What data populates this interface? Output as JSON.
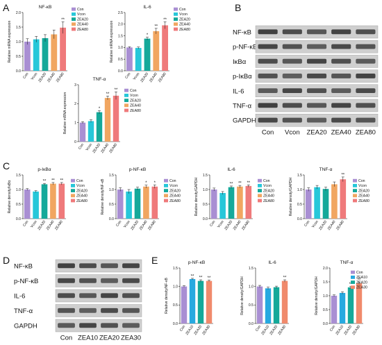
{
  "panel_letters": [
    "A",
    "B",
    "C",
    "D",
    "E"
  ],
  "colors": {
    "Con": "#a98fd3",
    "Vcon": "#27c7d9",
    "ZEA20": "#15a99a",
    "ZEA40": "#f1a661",
    "ZEA80": "#ef7a7b",
    "ZEA10": "#27a9e0",
    "ZEA30": "#f08a6c"
  },
  "blot_b": {
    "rows": [
      "NF-κB",
      "p-NF-κB",
      "IκBα",
      "p-IκBα",
      "IL-6",
      "TNF-α",
      "GAPDH"
    ],
    "lanes": [
      "Con",
      "Vcon",
      "ZEA20",
      "ZEA40",
      "ZEA80"
    ]
  },
  "blot_d": {
    "rows": [
      "NF-κB",
      "p-NF-κB",
      "IL-6",
      "TNF-α",
      "GAPDH"
    ],
    "lanes": [
      "Con",
      "ZEA10",
      "ZEA20",
      "ZEA30"
    ]
  },
  "chart_data": [
    {
      "id": "A1",
      "type": "bar",
      "title": "NF-κB",
      "ylabel": "Relative mRNA expression",
      "categories": [
        "Con",
        "Vcon",
        "ZEA20",
        "ZEA40",
        "ZEA80"
      ],
      "values": [
        1.0,
        1.08,
        1.12,
        1.25,
        1.48
      ],
      "errors": [
        0.1,
        0.1,
        0.12,
        0.15,
        0.2
      ],
      "significance": [
        "",
        "",
        "",
        "",
        "**"
      ],
      "ylim": [
        0,
        2.0
      ],
      "yticks": [
        "0.0",
        "0.5",
        "1.0",
        "1.5",
        "2.0"
      ],
      "legend": [
        "Con",
        "Vcon",
        "ZEA20",
        "ZEA40",
        "ZEA80"
      ]
    },
    {
      "id": "A2",
      "type": "bar",
      "title": "IL-6",
      "ylabel": "Relative mRNA expression",
      "categories": [
        "Con",
        "Vcon",
        "ZEA20",
        "ZEA40",
        "ZEA80"
      ],
      "values": [
        1.0,
        0.98,
        1.38,
        1.7,
        1.95
      ],
      "errors": [
        0.03,
        0.04,
        0.06,
        0.12,
        0.15
      ],
      "significance": [
        "",
        "",
        "*",
        "**",
        "**"
      ],
      "ylim": [
        0,
        2.5
      ],
      "yticks": [
        "0.0",
        "0.5",
        "1.0",
        "1.5",
        "2.0",
        "2.5"
      ],
      "legend": [
        "Con",
        "Vcon",
        "ZEA20",
        "ZEA40",
        "ZEA80"
      ]
    },
    {
      "id": "A3",
      "type": "bar",
      "title": "TNF-α",
      "ylabel": "Relative mRNA expression",
      "categories": [
        "Con",
        "Vcon",
        "ZEA20",
        "ZEA40",
        "ZEA80"
      ],
      "values": [
        1.0,
        1.08,
        1.55,
        2.3,
        2.42
      ],
      "errors": [
        0.05,
        0.07,
        0.08,
        0.1,
        0.2
      ],
      "significance": [
        "",
        "",
        "*",
        "**",
        "**"
      ],
      "ylim": [
        0,
        3.0
      ],
      "yticks": [
        "0",
        "1",
        "2",
        "3"
      ],
      "legend": [
        "Con",
        "Vcon",
        "ZEA20",
        "ZEA40",
        "ZEA80"
      ]
    },
    {
      "id": "C1",
      "type": "bar",
      "title": "p-IκBα",
      "ylabel": "Relative density/IκBα",
      "categories": [
        "Con",
        "Vcon",
        "ZEA20",
        "ZEA40",
        "ZEA80"
      ],
      "values": [
        1.0,
        0.93,
        1.18,
        1.2,
        1.2
      ],
      "errors": [
        0.03,
        0.03,
        0.03,
        0.04,
        0.04
      ],
      "significance": [
        "",
        "",
        "**",
        "**",
        "**"
      ],
      "ylim": [
        0,
        1.5
      ],
      "yticks": [
        "0.0",
        "0.5",
        "1.0",
        "1.5"
      ],
      "legend": [
        "Con",
        "Vcon",
        "ZEA20",
        "ZEA40",
        "ZEA80"
      ]
    },
    {
      "id": "C2",
      "type": "bar",
      "title": "p-NF-κB",
      "ylabel": "Relative density/NF-κB",
      "categories": [
        "Con",
        "Vcon",
        "ZEA20",
        "ZEA40",
        "ZEA80"
      ],
      "values": [
        1.0,
        0.93,
        1.03,
        1.1,
        1.1
      ],
      "errors": [
        0.06,
        0.07,
        0.05,
        0.05,
        0.06
      ],
      "significance": [
        "",
        "",
        "",
        "*",
        "*"
      ],
      "ylim": [
        0,
        1.5
      ],
      "yticks": [
        "0.0",
        "0.5",
        "1.0",
        "1.5"
      ],
      "legend": [
        "Con",
        "Vcon",
        "ZEA20",
        "ZEA40",
        "ZEA80"
      ]
    },
    {
      "id": "C3",
      "type": "bar",
      "title": "IL-6",
      "ylabel": "Relative density/GAPDH",
      "categories": [
        "Con",
        "Vcon",
        "ZEA20",
        "ZEA40",
        "ZEA80"
      ],
      "values": [
        1.0,
        0.88,
        1.08,
        1.1,
        1.12
      ],
      "errors": [
        0.05,
        0.05,
        0.04,
        0.04,
        0.04
      ],
      "significance": [
        "",
        "",
        "**",
        "**",
        "**"
      ],
      "ylim": [
        0,
        1.5
      ],
      "yticks": [
        "0.0",
        "0.5",
        "1.0",
        "1.5"
      ],
      "legend": [
        "Con",
        "Vcon",
        "ZEA20",
        "ZEA40",
        "ZEA80"
      ]
    },
    {
      "id": "C4",
      "type": "bar",
      "title": "TNF-α",
      "ylabel": "Relative density/GAPDH",
      "categories": [
        "Con",
        "Vcon",
        "ZEA20",
        "ZEA40",
        "ZEA80"
      ],
      "values": [
        1.0,
        1.08,
        1.02,
        1.18,
        1.35
      ],
      "errors": [
        0.06,
        0.06,
        0.06,
        0.08,
        0.08
      ],
      "significance": [
        "",
        "",
        "",
        "",
        "**"
      ],
      "ylim": [
        0,
        1.5
      ],
      "yticks": [
        "0.0",
        "0.5",
        "1.0",
        "1.5"
      ],
      "legend": [
        "Con",
        "Vcon",
        "ZEA20",
        "ZEA40",
        "ZEA80"
      ]
    },
    {
      "id": "E1",
      "type": "bar",
      "title": "p-NF-κB",
      "ylabel": "Relative density/NF-κB",
      "categories": [
        "Con",
        "ZEA10",
        "ZEA20",
        "ZEA30"
      ],
      "values": [
        1.0,
        1.2,
        1.15,
        1.15
      ],
      "errors": [
        0.02,
        0.02,
        0.03,
        0.02
      ],
      "significance": [
        "",
        "**",
        "**",
        "**"
      ],
      "ylim": [
        0,
        1.5
      ],
      "yticks": [
        "0.0",
        "0.5",
        "1.0",
        "1.5"
      ],
      "legend": []
    },
    {
      "id": "E2",
      "type": "bar",
      "title": "IL-6",
      "ylabel": "Relative density/GAPDH",
      "categories": [
        "Con",
        "ZEA10",
        "ZEA20",
        "ZEA30"
      ],
      "values": [
        1.0,
        0.95,
        0.98,
        1.15
      ],
      "errors": [
        0.03,
        0.03,
        0.03,
        0.03
      ],
      "significance": [
        "",
        "",
        "",
        "**"
      ],
      "ylim": [
        0,
        1.5
      ],
      "yticks": [
        "0.0",
        "0.5",
        "1.0",
        "1.5"
      ],
      "legend": []
    },
    {
      "id": "E3",
      "type": "bar",
      "title": "TNF-α",
      "ylabel": "Relative density/GAPDH",
      "categories": [
        "Con",
        "ZEA10",
        "ZEA20",
        "ZEA30"
      ],
      "values": [
        1.0,
        1.1,
        1.3,
        1.45
      ],
      "errors": [
        0.03,
        0.04,
        0.04,
        0.04
      ],
      "significance": [
        "",
        "",
        "**",
        "**"
      ],
      "ylim": [
        0,
        2.0
      ],
      "yticks": [
        "0.0",
        "0.5",
        "1.0",
        "1.5",
        "2.0"
      ],
      "legend": [
        "Con",
        "ZEA10",
        "ZEA20",
        "ZEA30"
      ]
    }
  ]
}
